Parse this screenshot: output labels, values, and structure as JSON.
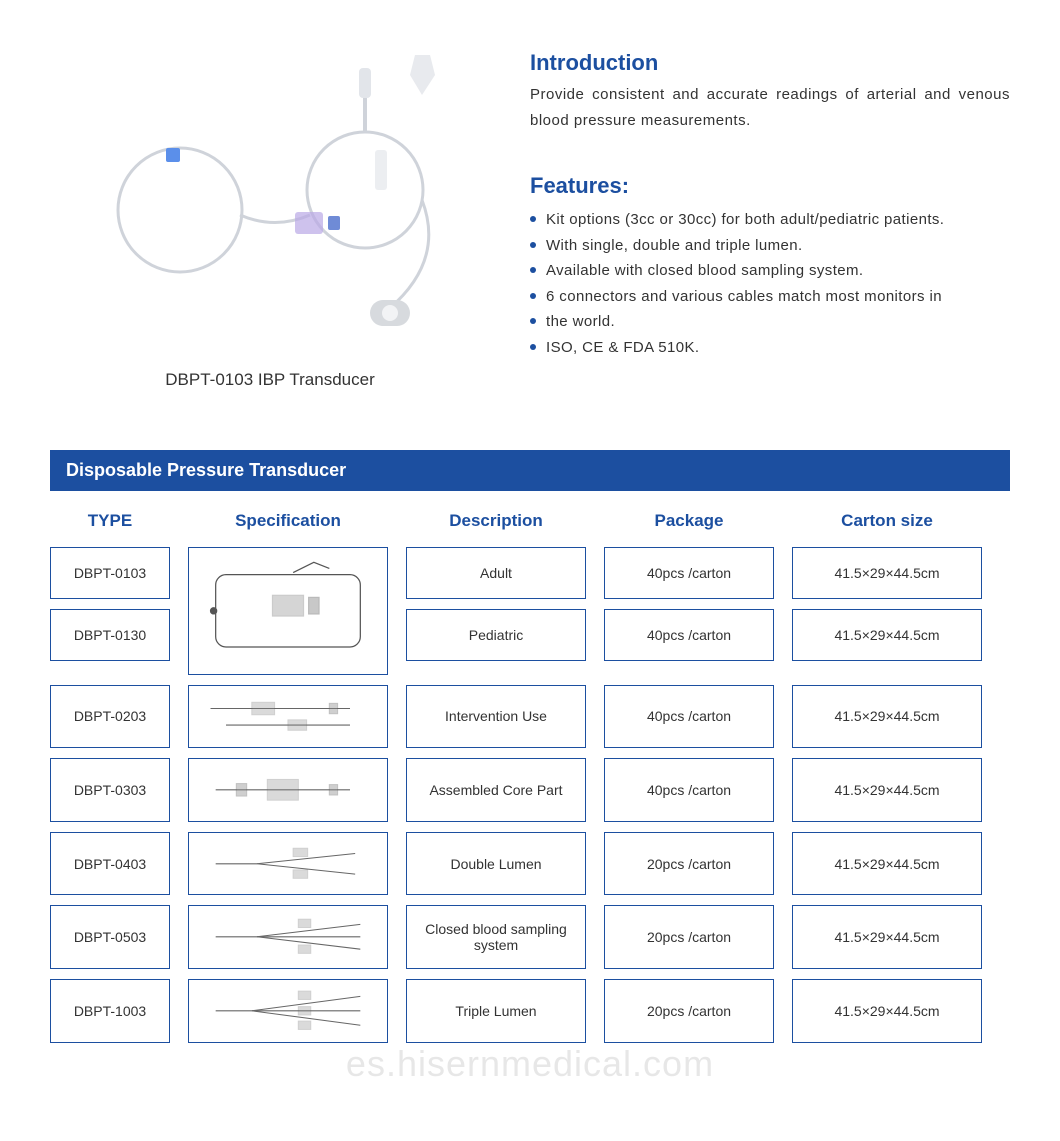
{
  "colors": {
    "accent": "#1c4fa0",
    "title_bar_bg": "#1c4fa0",
    "title_bar_text": "#ffffff",
    "header_text": "#1c4fa0",
    "cell_border": "#1c4fa0",
    "bullet": "#1c4fa0",
    "body_text": "#333333"
  },
  "product": {
    "caption": "DBPT-0103 IBP Transducer"
  },
  "intro": {
    "title": "Introduction",
    "text": "Provide consistent and accurate readings of arterial and venous blood pressure measurements."
  },
  "features": {
    "title": "Features:",
    "items": [
      "Kit options (3cc or 30cc) for both adult/pediatric patients.",
      "With single, double and triple lumen.",
      "Available with closed blood sampling system.",
      "6 connectors and various cables match most monitors in",
      "the world.",
      "ISO, CE & FDA 510K."
    ]
  },
  "table": {
    "title": "Disposable Pressure Transducer",
    "headers": {
      "type": "TYPE",
      "specification": "Specification",
      "description": "Description",
      "package": "Package",
      "carton_size": "Carton  size"
    },
    "group": {
      "types": [
        "DBPT-0103",
        "DBPT-0130"
      ],
      "rows": [
        {
          "description": "Adult",
          "package": "40pcs /carton",
          "carton_size": "41.5×29×44.5cm"
        },
        {
          "description": "Pediatric",
          "package": "40pcs /carton",
          "carton_size": "41.5×29×44.5cm"
        }
      ]
    },
    "rows": [
      {
        "type": "DBPT-0203",
        "description": "Intervention Use",
        "package": "40pcs /carton",
        "carton_size": "41.5×29×44.5cm"
      },
      {
        "type": "DBPT-0303",
        "description": "Assembled Core Part",
        "package": "40pcs /carton",
        "carton_size": "41.5×29×44.5cm"
      },
      {
        "type": "DBPT-0403",
        "description": "Double Lumen",
        "package": "20pcs /carton",
        "carton_size": "41.5×29×44.5cm"
      },
      {
        "type": "DBPT-0503",
        "description": "Closed blood sampling system",
        "package": "20pcs /carton",
        "carton_size": "41.5×29×44.5cm"
      },
      {
        "type": "DBPT-1003",
        "description": "Triple Lumen",
        "package": "20pcs /carton",
        "carton_size": "41.5×29×44.5cm"
      }
    ]
  },
  "watermark": "es.hisernmedical.com"
}
